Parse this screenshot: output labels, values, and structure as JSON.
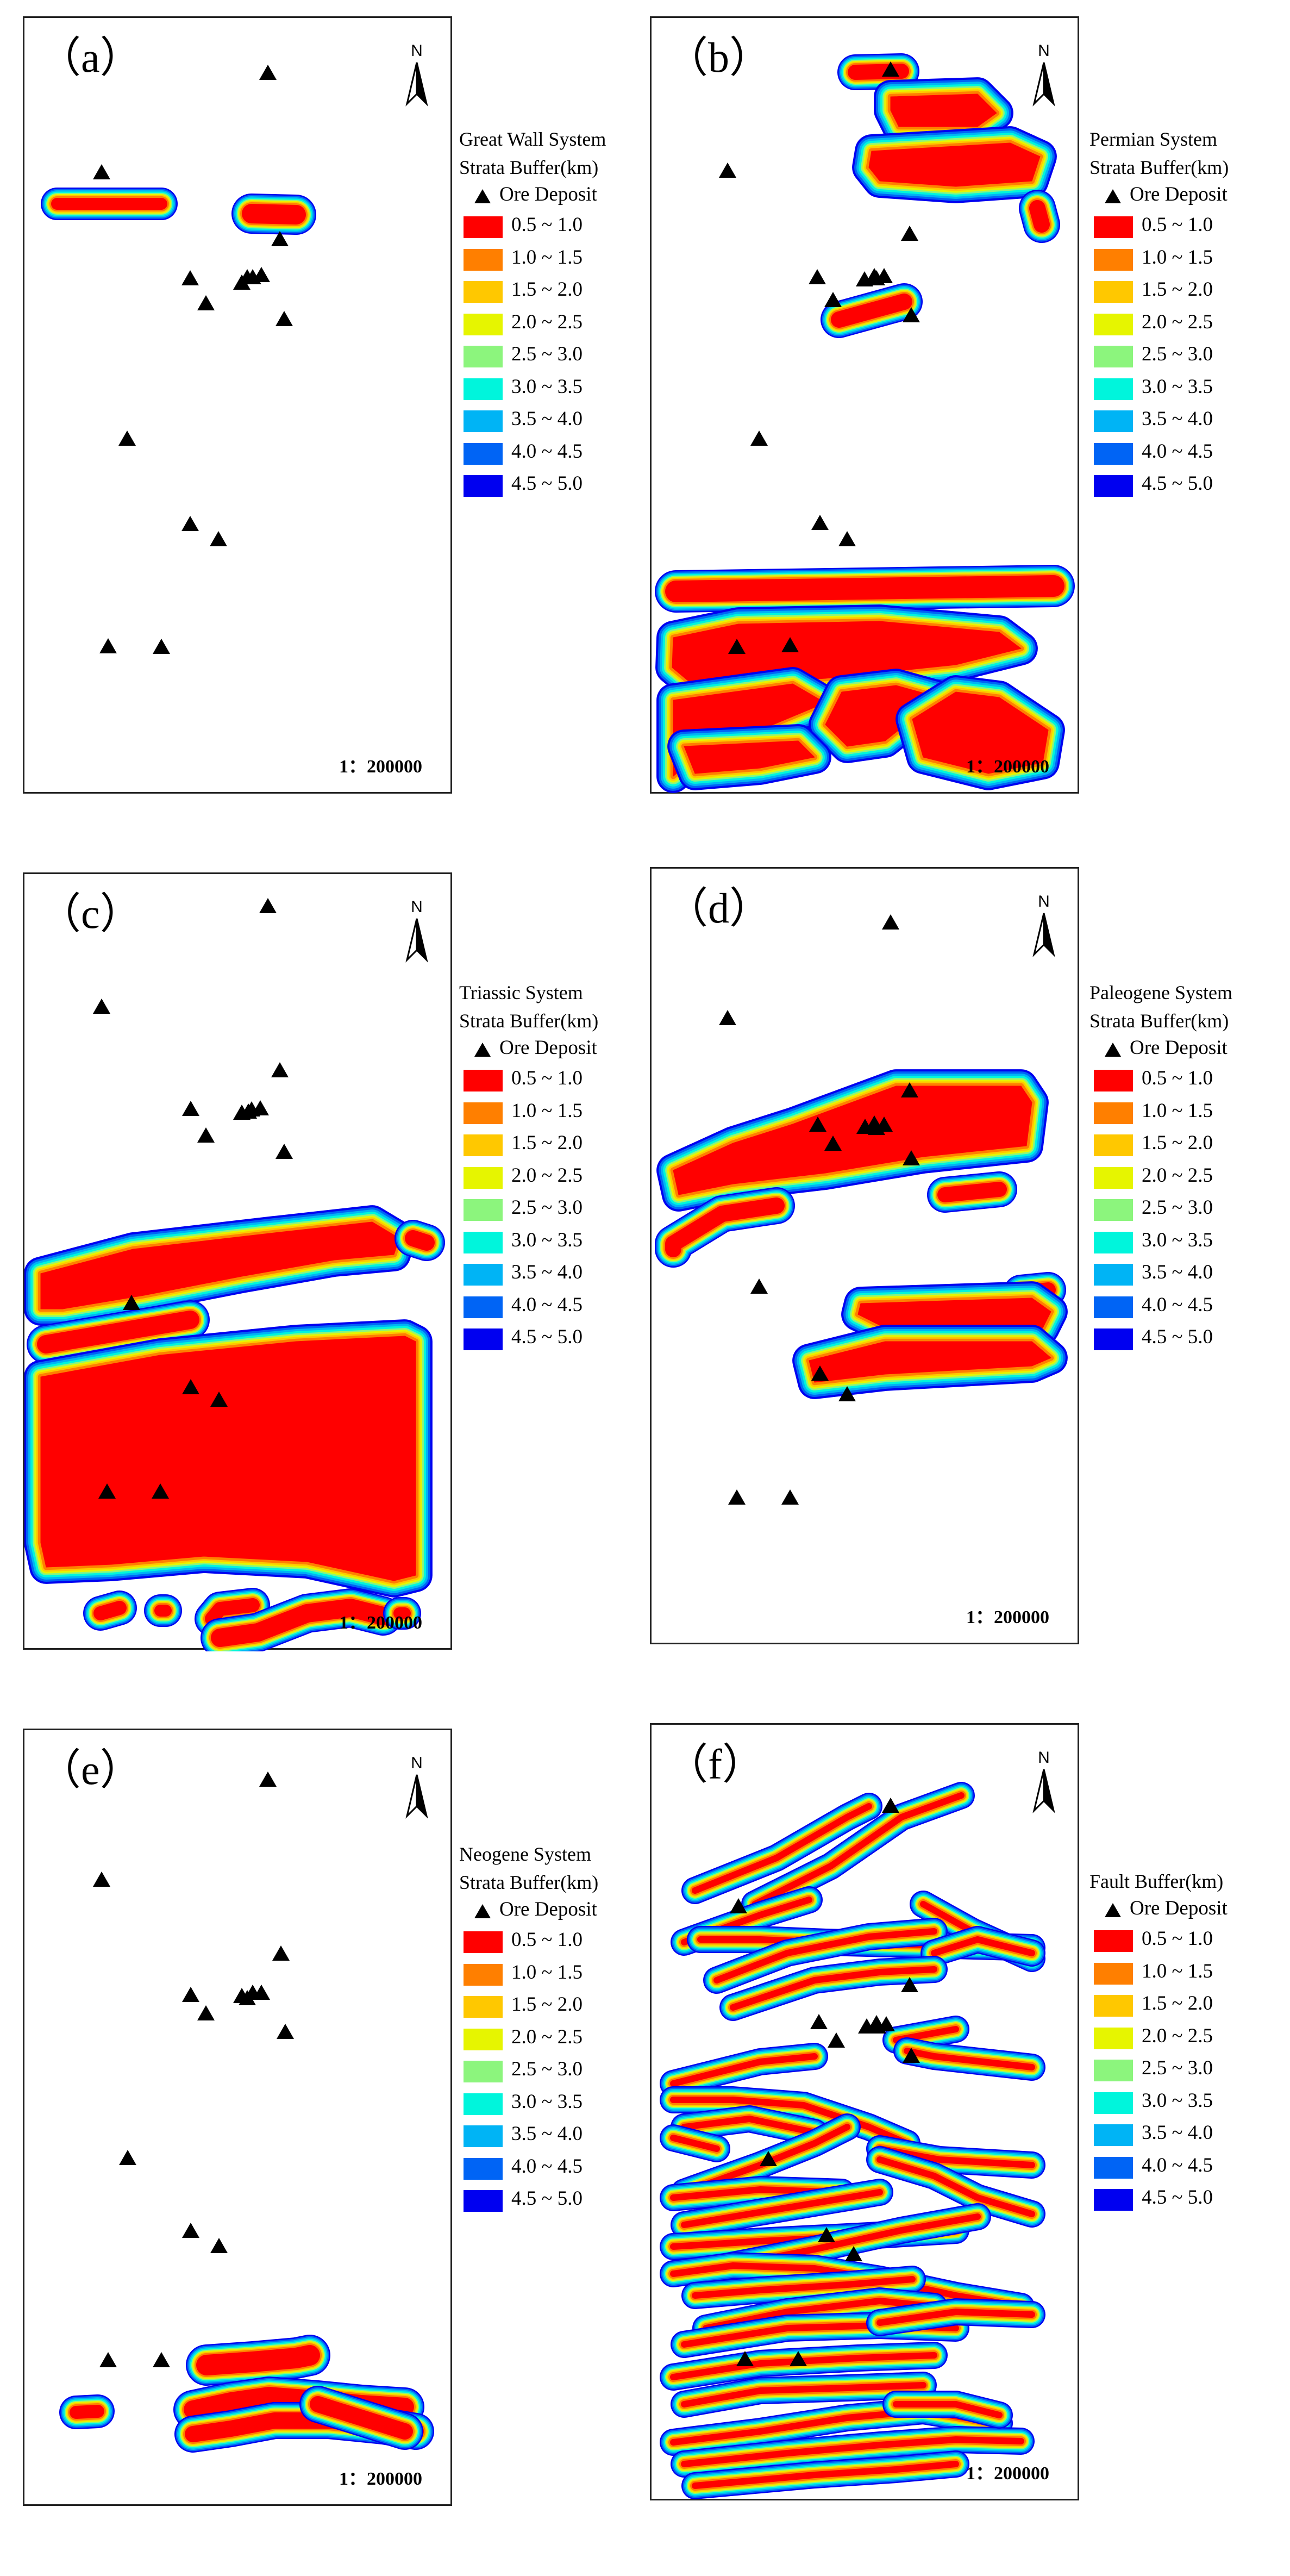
{
  "panels": [
    {
      "label": "（a）",
      "title1": "Great Wall System",
      "title2": "Strata Buffer(km)",
      "scale": "1：200000"
    },
    {
      "label": "（b）",
      "title1": "Permian System",
      "title2": "Strata Buffer(km)",
      "scale": "1：200000"
    },
    {
      "label": "（c）",
      "title1": "Triassic System",
      "title2": "Strata Buffer(km)",
      "scale": "1：200000"
    },
    {
      "label": "（d）",
      "title1": "Paleogene  System",
      "title2": "Strata Buffer(km)",
      "scale": "1：200000"
    },
    {
      "label": "（e）",
      "title1": "Neogene  System",
      "title2": "Strata Buffer(km)",
      "scale": "1：200000"
    },
    {
      "label": "（f）",
      "title1": "Fault Buffer(km)",
      "title2": "",
      "scale": "1：200000"
    }
  ],
  "north_label": "N",
  "legend": {
    "ore_label": "Ore Deposit",
    "classes": [
      {
        "label": "0.5 ~ 1.0",
        "color": "#ff0000"
      },
      {
        "label": "1.0 ~ 1.5",
        "color": "#ff7f00"
      },
      {
        "label": "1.5 ~ 2.0",
        "color": "#ffc800"
      },
      {
        "label": "2.0 ~ 2.5",
        "color": "#e6f500"
      },
      {
        "label": "2.5 ~ 3.0",
        "color": "#8cf57d"
      },
      {
        "label": "3.0 ~ 3.5",
        "color": "#00f5dc"
      },
      {
        "label": "3.5 ~ 4.0",
        "color": "#00b4f5"
      },
      {
        "label": "4.0 ~ 4.5",
        "color": "#0064f5"
      },
      {
        "label": "4.5 ~ 5.0",
        "color": "#0000f0"
      }
    ]
  },
  "ore_color": "#000000"
}
